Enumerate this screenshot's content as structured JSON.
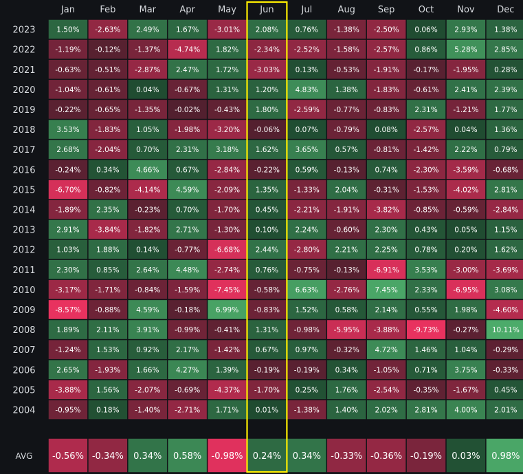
{
  "chart_data": {
    "type": "heatmap",
    "months": [
      "Jan",
      "Feb",
      "Mar",
      "Apr",
      "May",
      "Jun",
      "Jul",
      "Aug",
      "Sep",
      "Oct",
      "Nov",
      "Dec"
    ],
    "years": [
      2023,
      2022,
      2021,
      2020,
      2019,
      2018,
      2017,
      2016,
      2015,
      2014,
      2013,
      2012,
      2011,
      2010,
      2009,
      2008,
      2007,
      2006,
      2005,
      2004
    ],
    "values": [
      [
        1.5,
        -2.63,
        2.49,
        1.67,
        -3.01,
        2.08,
        0.76,
        -1.38,
        -2.5,
        0.06,
        2.93,
        1.38
      ],
      [
        -1.19,
        -0.12,
        -1.37,
        -4.74,
        1.82,
        -2.34,
        -2.52,
        -1.58,
        -2.57,
        0.86,
        5.28,
        2.85
      ],
      [
        -0.63,
        -0.51,
        -2.87,
        2.47,
        1.72,
        -3.03,
        0.13,
        -0.53,
        -1.91,
        -0.17,
        -1.95,
        0.28
      ],
      [
        -1.04,
        -0.61,
        0.04,
        -0.67,
        1.31,
        1.2,
        4.83,
        1.38,
        -1.83,
        -0.61,
        2.41,
        2.39
      ],
      [
        -0.22,
        -0.65,
        -1.35,
        -0.02,
        -0.43,
        1.8,
        -2.59,
        -0.77,
        -0.83,
        2.31,
        -1.21,
        1.77
      ],
      [
        3.53,
        -1.83,
        1.05,
        -1.98,
        -3.2,
        -0.06,
        0.07,
        -0.79,
        0.08,
        -2.57,
        0.04,
        1.36
      ],
      [
        2.68,
        -2.04,
        0.7,
        2.31,
        3.18,
        1.62,
        3.65,
        0.57,
        -0.81,
        -1.42,
        2.22,
        0.79
      ],
      [
        -0.24,
        0.34,
        4.66,
        0.67,
        -2.84,
        -0.22,
        0.59,
        -0.13,
        0.74,
        -2.3,
        -3.59,
        -0.68
      ],
      [
        -6.7,
        -0.82,
        -4.14,
        4.59,
        -2.09,
        1.35,
        -1.33,
        2.04,
        -0.31,
        -1.53,
        -4.02,
        2.81
      ],
      [
        -1.89,
        2.35,
        -0.23,
        0.7,
        -1.7,
        0.45,
        -2.21,
        -1.91,
        -3.82,
        -0.85,
        -0.59,
        -2.84
      ],
      [
        2.91,
        -3.84,
        -1.82,
        2.71,
        -1.3,
        0.1,
        2.24,
        -0.6,
        2.3,
        0.43,
        0.05,
        1.15
      ],
      [
        1.03,
        1.88,
        0.14,
        -0.77,
        -6.68,
        2.44,
        -2.8,
        2.21,
        2.25,
        0.78,
        0.2,
        1.62
      ],
      [
        2.3,
        0.85,
        2.64,
        4.48,
        -2.74,
        0.76,
        -0.75,
        -0.13,
        -6.91,
        3.53,
        -3.0,
        -3.69
      ],
      [
        -3.17,
        -1.71,
        -0.84,
        -1.59,
        -7.45,
        -0.58,
        6.63,
        -2.76,
        7.45,
        2.33,
        -6.95,
        3.08
      ],
      [
        -8.57,
        -0.88,
        4.59,
        -0.18,
        6.99,
        -0.83,
        1.52,
        0.58,
        2.14,
        0.55,
        1.98,
        -4.6
      ],
      [
        1.89,
        2.11,
        3.91,
        -0.99,
        -0.41,
        1.31,
        -0.98,
        -5.95,
        -3.88,
        -9.73,
        -0.27,
        10.11
      ],
      [
        -1.24,
        1.53,
        0.92,
        2.17,
        -1.42,
        0.67,
        0.97,
        -0.32,
        4.72,
        1.46,
        1.04,
        -0.29
      ],
      [
        2.65,
        -1.93,
        1.66,
        4.27,
        1.39,
        -0.19,
        -0.19,
        0.34,
        -1.05,
        0.71,
        3.75,
        -0.33
      ],
      [
        -3.88,
        1.56,
        -2.07,
        -0.69,
        -4.37,
        -1.7,
        0.25,
        1.76,
        -2.54,
        -0.35,
        -1.67,
        0.45
      ],
      [
        -0.95,
        0.18,
        -1.4,
        -2.71,
        1.71,
        0.01,
        -1.38,
        1.4,
        2.02,
        2.81,
        4.0,
        2.01
      ]
    ],
    "avg_label": "AVG",
    "avg": [
      -0.56,
      -0.34,
      0.34,
      0.58,
      -0.98,
      0.24,
      0.34,
      -0.33,
      -0.36,
      -0.19,
      0.03,
      0.98
    ],
    "highlight_month": "Jun",
    "colors": {
      "background": "#111317",
      "positive_light": "#4cab6a",
      "positive_dark": "#1f4a30",
      "negative_light": "#e8325f",
      "negative_dark": "#50202e",
      "highlight": "#ffef00"
    }
  }
}
